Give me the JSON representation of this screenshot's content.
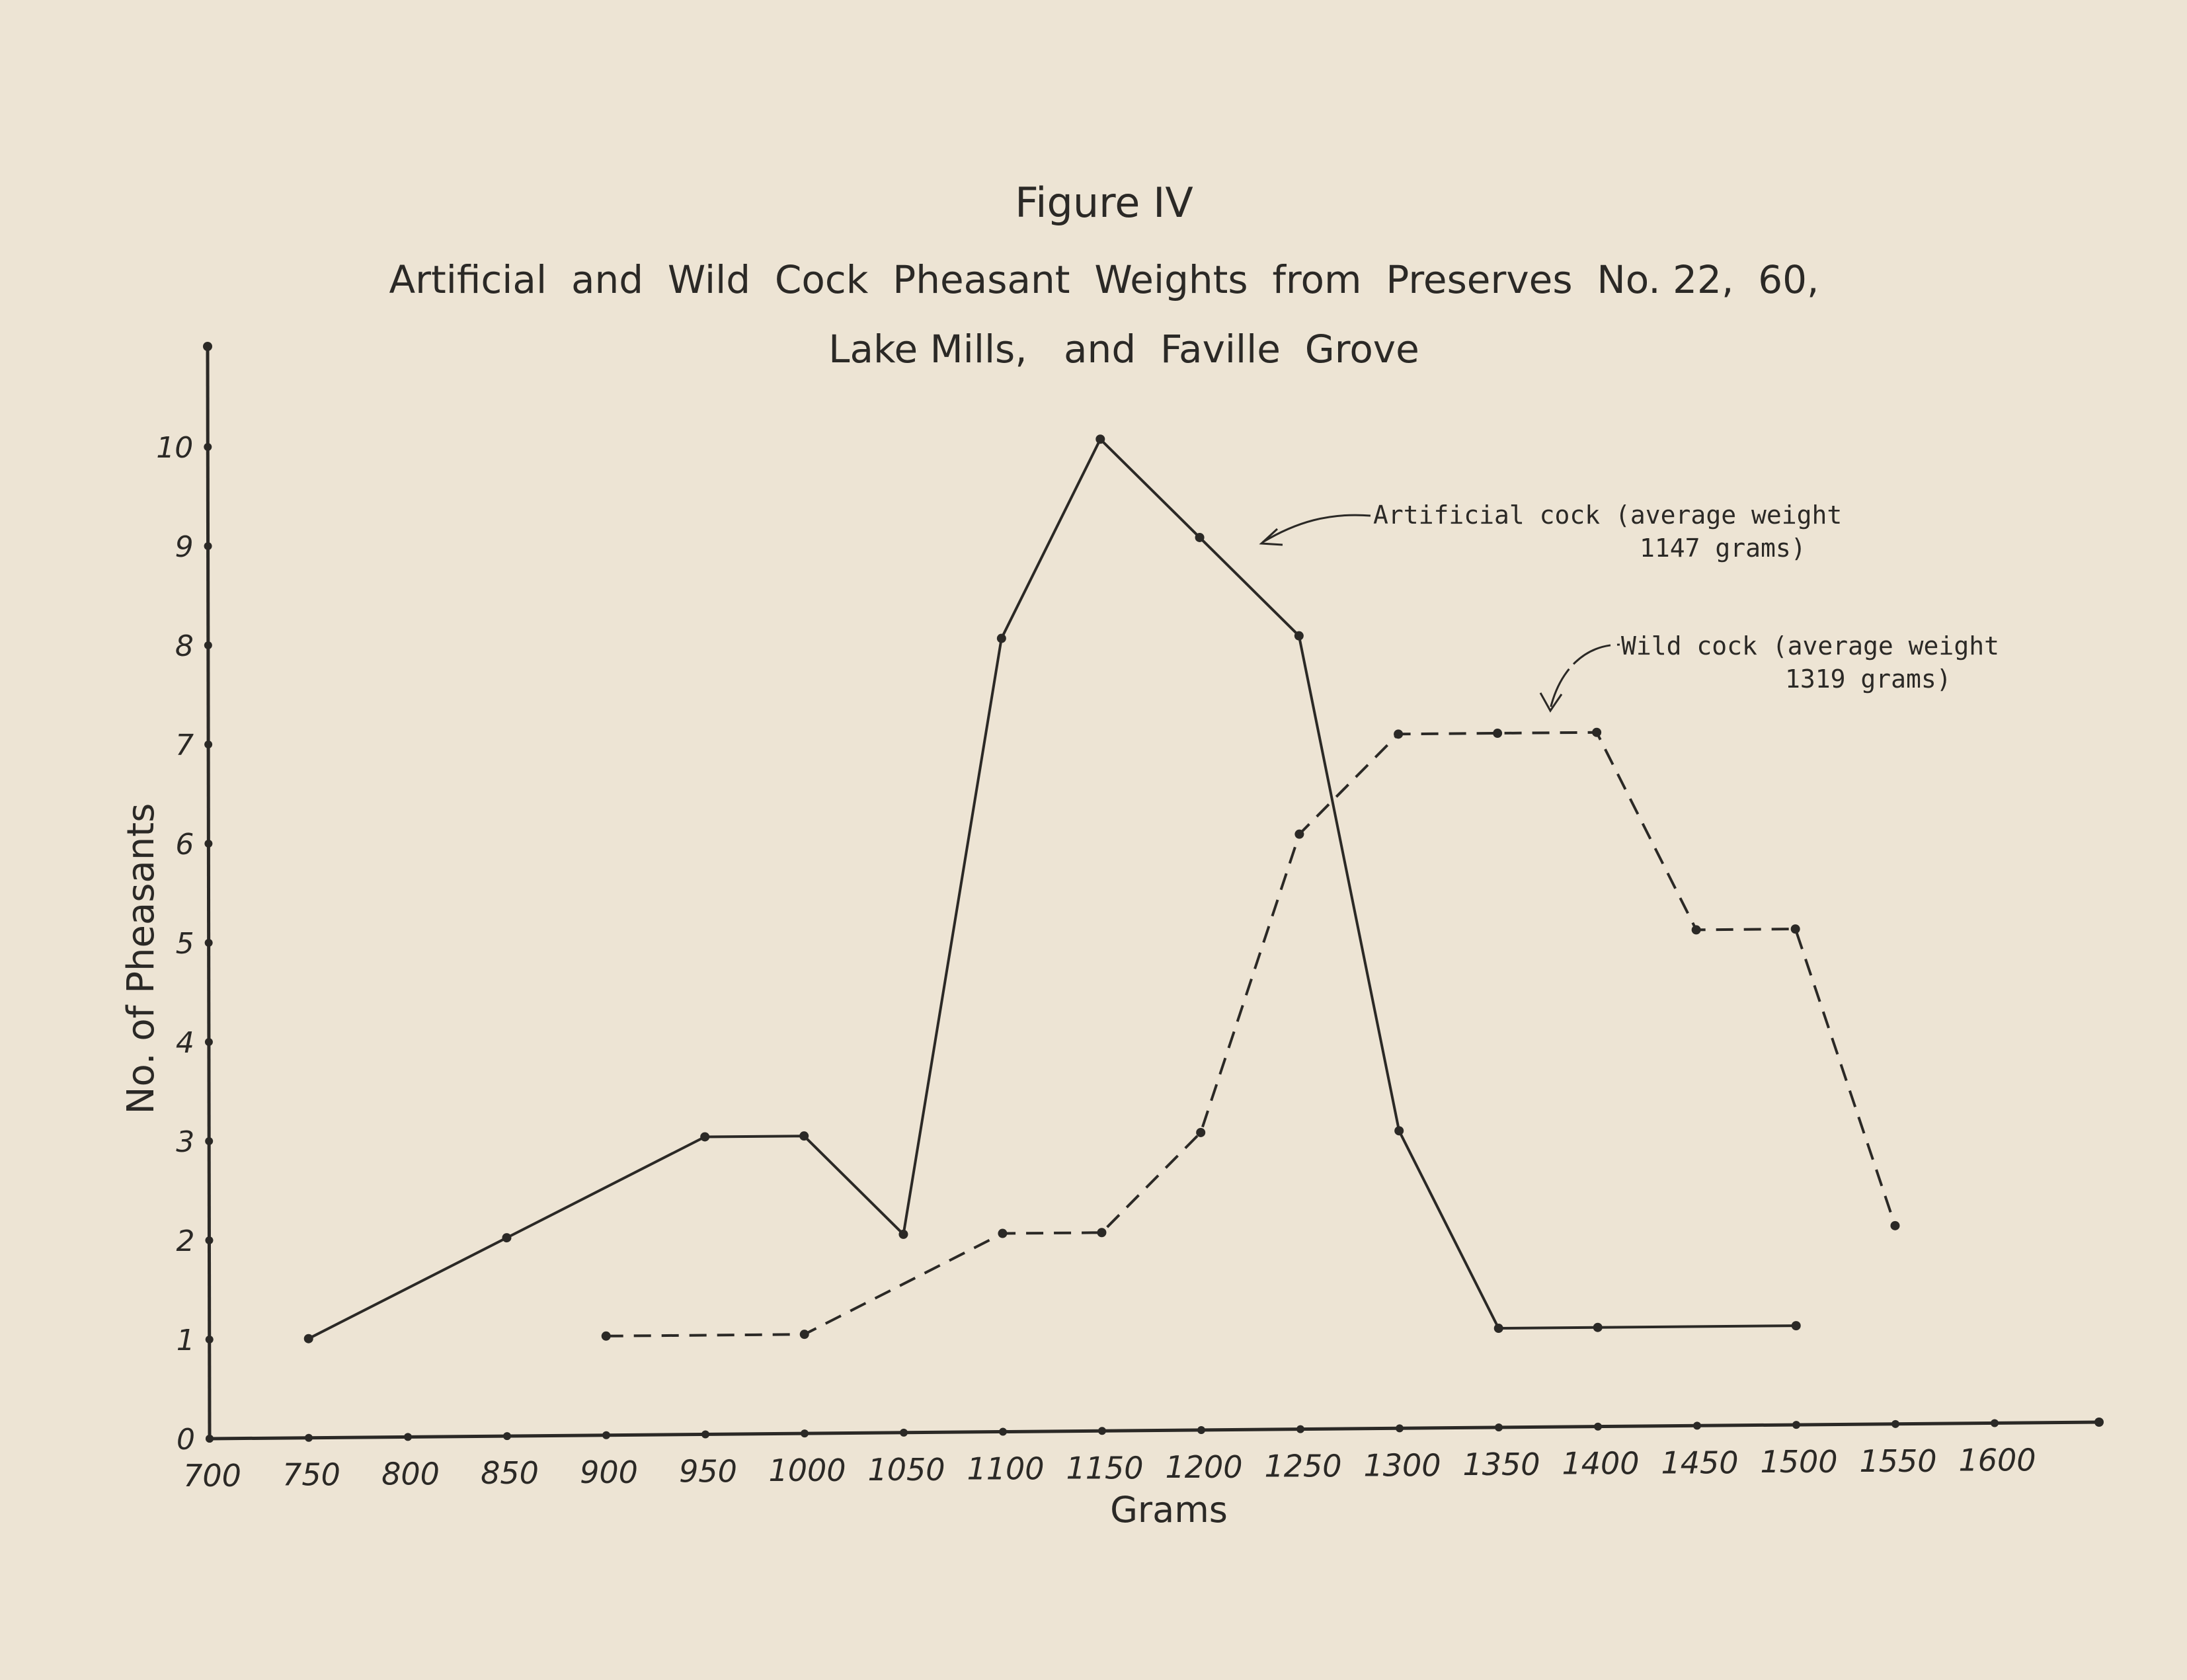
{
  "chart_data": {
    "type": "line",
    "figure_label": "Figure IV",
    "title_line1": "Artificial  and  Wild  Cock  Pheasant  Weights  from  Preserves  No. 22,  60,",
    "title_line2": "Lake Mills,   and  Faville  Grove",
    "xlabel": "Grams",
    "ylabel": "No. of Pheasants",
    "xlim": [
      700,
      1650
    ],
    "ylim": [
      0,
      11
    ],
    "x_ticks": [
      700,
      750,
      800,
      850,
      900,
      950,
      1000,
      1050,
      1100,
      1150,
      1200,
      1250,
      1300,
      1350,
      1400,
      1450,
      1500,
      1550,
      1600
    ],
    "y_ticks": [
      0,
      1,
      2,
      3,
      4,
      5,
      6,
      7,
      8,
      9,
      10
    ],
    "grid": false,
    "series": [
      {
        "name": "Artificial cock",
        "style": "solid",
        "annotation_line1": "Artificial cock (average weight",
        "annotation_line2": "1147 grams)",
        "x": [
          750,
          850,
          950,
          1000,
          1050,
          1100,
          1150,
          1200,
          1250,
          1300,
          1350,
          1400,
          1500
        ],
        "y": [
          1,
          2,
          3,
          3,
          2,
          8,
          10,
          9,
          8,
          3,
          1,
          1,
          1
        ]
      },
      {
        "name": "Wild cock",
        "style": "dashed",
        "annotation_line1": "Wild cock (average weight",
        "annotation_line2": "1319 grams)",
        "x": [
          900,
          1000,
          1100,
          1150,
          1200,
          1250,
          1300,
          1350,
          1400,
          1450,
          1500,
          1550
        ],
        "y": [
          1,
          1,
          2,
          2,
          3,
          6,
          7,
          7,
          7,
          5,
          5,
          2
        ]
      }
    ]
  },
  "colors": {
    "paper": "#ede4d4",
    "ink": "#2b2926"
  }
}
